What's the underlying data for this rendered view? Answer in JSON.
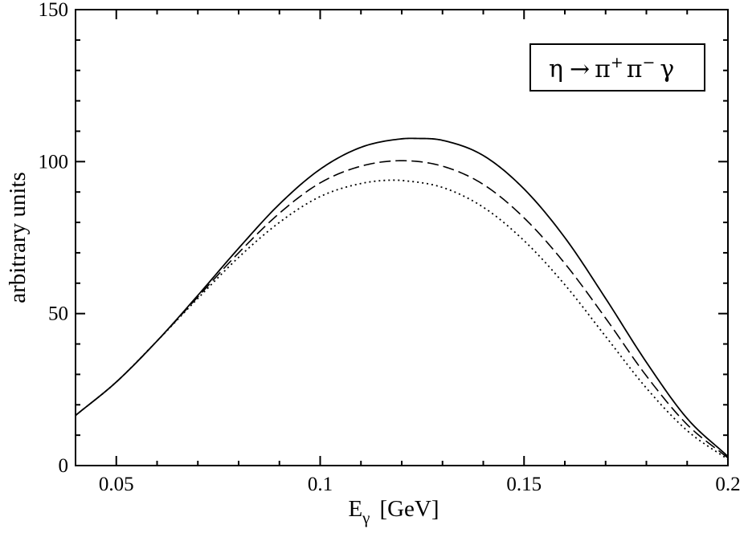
{
  "chart_data": {
    "type": "line",
    "xlabel": "E",
    "xlabel_sub": "γ",
    "xlabel_unit": "[GeV]",
    "ylabel": "arbitrary units",
    "xlim": [
      0.04,
      0.2
    ],
    "ylim": [
      0,
      150
    ],
    "xticks": [
      0.05,
      0.1,
      0.15,
      0.2
    ],
    "xtick_labels": [
      "0.05",
      "0.1",
      "0.15",
      "0.2"
    ],
    "yticks": [
      0,
      50,
      100,
      150
    ],
    "ytick_labels": [
      "0",
      "50",
      "100",
      "150"
    ],
    "grid": false,
    "legend": {
      "placement": "top-right",
      "text": "η → π⁺ π⁻ γ",
      "parts": {
        "eta": "η",
        "arrow": "→",
        "pi": "π",
        "plus": "+",
        "minus": "−",
        "gamma": "γ"
      }
    },
    "series": [
      {
        "style": "solid",
        "x": [
          0.04,
          0.05,
          0.06,
          0.07,
          0.08,
          0.09,
          0.1,
          0.11,
          0.12,
          0.125,
          0.13,
          0.14,
          0.15,
          0.16,
          0.17,
          0.18,
          0.19,
          0.2
        ],
        "y": [
          16.5,
          27.5,
          41.0,
          56.0,
          71.5,
          86.0,
          97.5,
          104.7,
          107.5,
          107.6,
          107.0,
          102.0,
          91.0,
          75.0,
          55.0,
          34.0,
          15.5,
          3.0
        ]
      },
      {
        "style": "dashed",
        "x": [
          0.04,
          0.05,
          0.06,
          0.07,
          0.08,
          0.09,
          0.1,
          0.11,
          0.12,
          0.13,
          0.14,
          0.15,
          0.16,
          0.17,
          0.18,
          0.19,
          0.2
        ],
        "y": [
          16.5,
          27.5,
          41.0,
          55.5,
          70.0,
          83.0,
          93.0,
          98.5,
          100.3,
          98.5,
          92.5,
          81.5,
          66.5,
          48.5,
          29.5,
          13.5,
          2.5
        ]
      },
      {
        "style": "dotted",
        "x": [
          0.04,
          0.05,
          0.06,
          0.07,
          0.08,
          0.09,
          0.1,
          0.11,
          0.118,
          0.12,
          0.13,
          0.14,
          0.15,
          0.16,
          0.17,
          0.18,
          0.19,
          0.2
        ],
        "y": [
          16.5,
          27.5,
          41.0,
          55.0,
          68.5,
          80.0,
          88.5,
          92.8,
          93.9,
          93.8,
          91.5,
          85.0,
          74.0,
          59.5,
          42.5,
          25.5,
          11.5,
          2.0
        ]
      }
    ]
  }
}
